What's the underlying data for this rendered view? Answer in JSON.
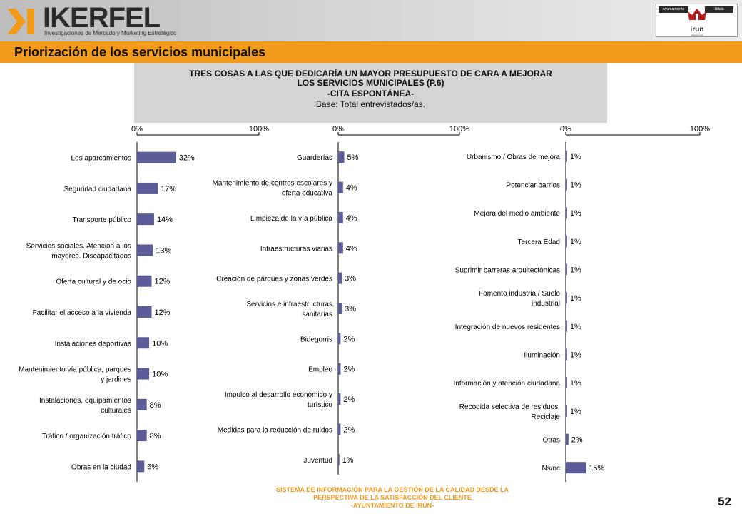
{
  "header": {
    "logo_text": "IKERFEL",
    "logo_subtitle": "Investigaciones de Mercado y Marketing Estratégico",
    "seal_left": "Ayuntamiento",
    "seal_right": "Udala",
    "seal_name": "irun",
    "seal_url": "www.irun.org"
  },
  "page_title": "Priorización de los servicios municipales",
  "title_box": {
    "line1": "TRES COSAS A LAS QUE DEDICARÍA UN MAYOR PRESUPUESTO DE CARA A MEJORAR",
    "line2": "LOS SERVICIOS MUNICIPALES (P.6)",
    "line3": "-CITA ESPONTÁNEA-",
    "line4": "Base: Total entrevistados/as."
  },
  "colors": {
    "bar": "#5c5c99",
    "orange": "#f29a1c",
    "title_box": "#d4d4d4"
  },
  "chart_data": [
    {
      "type": "bar",
      "orientation": "horizontal",
      "xlim": [
        0,
        100
      ],
      "tick_labels": [
        "0%",
        "100%"
      ],
      "categories": [
        "Los aparcamientos",
        "Seguridad ciudadana",
        "Transporte público",
        "Servicios sociales. Atención a los mayores. Discapacitados",
        "Oferta cultural y de ocio",
        "Facilitar el acceso a la vivienda",
        "Instalaciones deportivas",
        "Mantenimiento vía pública, parques y jardines",
        "Instalaciones, equipamientos culturales",
        "Tráfico / organización tráfico",
        "Obras en la ciudad"
      ],
      "values": [
        32,
        17,
        14,
        13,
        12,
        12,
        10,
        10,
        8,
        8,
        6
      ]
    },
    {
      "type": "bar",
      "orientation": "horizontal",
      "xlim": [
        0,
        100
      ],
      "tick_labels": [
        "0%",
        "100%"
      ],
      "categories": [
        "Guarderías",
        "Mantenimiento de centros escolares y oferta educativa",
        "Limpieza de la vía pública",
        "Infraestructuras viarias",
        "Creación de parques y zonas verdes",
        "Servicios e infraestructuras sanitarias",
        "Bidegorris",
        "Empleo",
        "Impulso al desarrollo económico y turístico",
        "Medidas para la reducción de ruidos",
        "Juventud"
      ],
      "values": [
        5,
        4,
        4,
        4,
        3,
        3,
        2,
        2,
        2,
        2,
        1
      ]
    },
    {
      "type": "bar",
      "orientation": "horizontal",
      "xlim": [
        0,
        100
      ],
      "tick_labels": [
        "0%",
        "100%"
      ],
      "categories": [
        "Urbanismo / Obras de mejora",
        "Potenciar barrios",
        "Mejora del medio ambiente",
        "Tercera Edad",
        "Suprimir barreras arquitectónicas",
        "Fomento industria / Suelo industrial",
        "Integración de nuevos residentes",
        "Iluminación",
        "Información y atención ciudadana",
        "Recogida selectiva de residuos. Reciclaje",
        "Otras",
        "Ns/nc"
      ],
      "values": [
        1,
        1,
        1,
        1,
        1,
        1,
        1,
        1,
        1,
        1,
        2,
        15
      ]
    }
  ],
  "footer": {
    "line1": "SISTEMA DE INFORMACIÓN PARA LA GESTIÓN DE LA CALIDAD DESDE LA",
    "line2": "PERSPECTIVA DE LA SATISFACCIÓN DEL CLIENTE",
    "line3": "-AYUNTAMIENTO DE IRÚN-"
  },
  "page_number": "52"
}
